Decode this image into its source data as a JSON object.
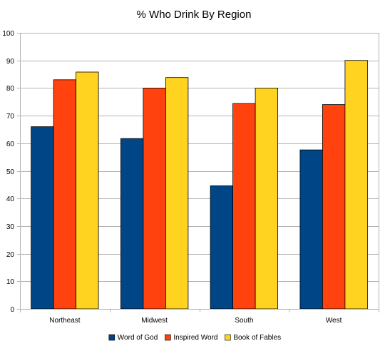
{
  "chart_data": {
    "type": "bar",
    "title": "% Who Drink By Region",
    "xlabel": "",
    "ylabel": "",
    "categories": [
      "Northeast",
      "Midwest",
      "South",
      "West"
    ],
    "series": [
      {
        "name": "Word of God",
        "color": "#004586",
        "values": [
          66,
          61.7,
          44.6,
          57.6
        ]
      },
      {
        "name": "Inspired Word",
        "color": "#ff420e",
        "values": [
          83,
          80,
          74.4,
          74
        ]
      },
      {
        "name": "Book of Fables",
        "color": "#ffd320",
        "values": [
          85.8,
          83.8,
          80,
          90
        ]
      }
    ],
    "ylim": [
      0,
      100
    ],
    "yticks": [
      "0",
      "10",
      "20",
      "30",
      "40",
      "50",
      "60",
      "70",
      "80",
      "90",
      "100"
    ],
    "grid": true,
    "legend_position": "bottom"
  }
}
